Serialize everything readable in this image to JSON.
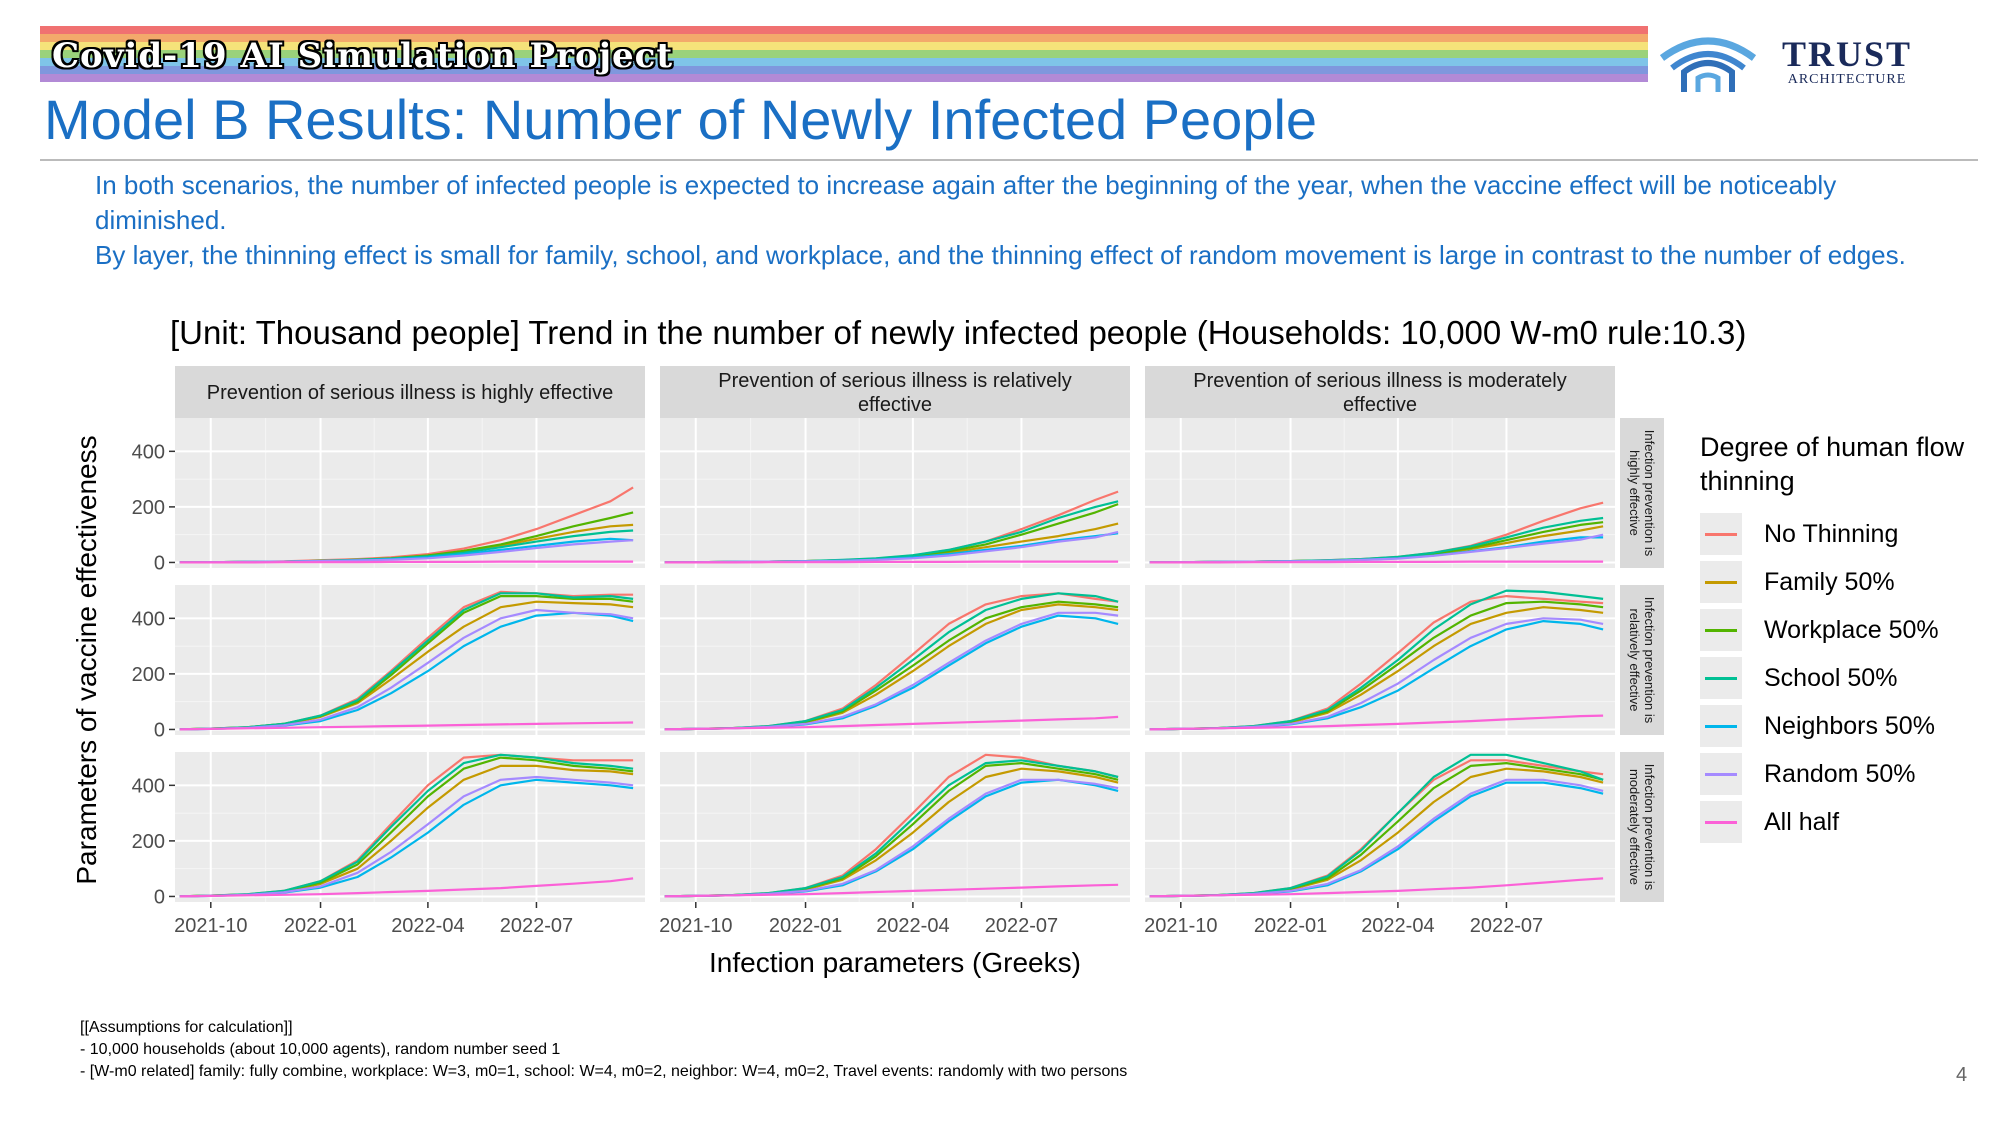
{
  "header": {
    "project_title": "Covid-19 AI Simulation Project",
    "logo_name": "TRUST",
    "logo_sub": "ARCHITECTURE",
    "banner_colors": [
      "#f07171",
      "#f3a96b",
      "#f5e27a",
      "#9ad27b",
      "#7fc4e8",
      "#7f97dd",
      "#b28ad6"
    ]
  },
  "page_title": "Model B Results: Number of Newly Infected People",
  "intro": [
    "In both scenarios, the number of infected people is expected to increase again after the beginning of the year, when the vaccine effect will be noticeably diminished.",
    "By layer, the thinning effect is small for family, school, and workplace, and the thinning effect of random movement is large in contrast to the number of edges."
  ],
  "chart_title": "[Unit: Thousand people] Trend in the number of newly infected people (Households: 10,000 W-m0 rule:10.3)",
  "assumptions": [
    "[[Assumptions for calculation]]",
    "- 10,000 households (about 10,000 agents), random number seed 1",
    "- [W-m0 related] family: fully combine, workplace: W=3, m0=1, school: W=4, m0=2, neighbor: W=4, m0=2, Travel events: randomly with two persons"
  ],
  "page_number": "4",
  "chart_data": {
    "type": "line",
    "xlabel": "Infection parameters (Greeks)",
    "ylabel": "Parameters of vaccine effectiveness",
    "x_ticks": [
      "2021-10",
      "2022-01",
      "2022-04",
      "2022-07"
    ],
    "x_range": [
      "2021-09-01",
      "2022-09-30"
    ],
    "y_ticks": [
      0,
      200,
      400
    ],
    "y_range": [
      -20,
      520
    ],
    "col_labels": [
      "Prevention of serious illness is highly effective",
      "Prevention of serious illness is relatively effective",
      "Prevention of serious illness is moderately effective"
    ],
    "row_labels": [
      "Infection prevention is highly effective",
      "Infection prevention is relatively effective",
      "Infection prevention is moderately effective"
    ],
    "legend_title": "Degree of human flow thinning",
    "series": [
      {
        "name": "No Thinning",
        "color": "#F8766D"
      },
      {
        "name": "Family 50%",
        "color": "#C49A00"
      },
      {
        "name": "Workplace 50%",
        "color": "#53B400"
      },
      {
        "name": "School 50%",
        "color": "#00C094"
      },
      {
        "name": "Neighbors 50%",
        "color": "#00B6EB"
      },
      {
        "name": "Random 50%",
        "color": "#A58AFF"
      },
      {
        "name": "All half",
        "color": "#FB61D7"
      }
    ],
    "dates": [
      "2021-09-05",
      "2021-10-01",
      "2021-11-01",
      "2021-12-01",
      "2022-01-01",
      "2022-02-01",
      "2022-03-01",
      "2022-04-01",
      "2022-05-01",
      "2022-06-01",
      "2022-07-01",
      "2022-08-01",
      "2022-09-01",
      "2022-09-20"
    ],
    "panels": [
      {
        "row": 0,
        "col": 0,
        "values": [
          [
            0,
            1,
            2,
            4,
            8,
            12,
            18,
            30,
            50,
            80,
            120,
            170,
            220,
            270
          ],
          [
            0,
            1,
            2,
            3,
            6,
            10,
            15,
            25,
            40,
            60,
            85,
            110,
            130,
            135
          ],
          [
            0,
            1,
            2,
            3,
            6,
            10,
            15,
            25,
            42,
            65,
            95,
            130,
            160,
            180
          ],
          [
            0,
            1,
            2,
            3,
            6,
            9,
            14,
            22,
            35,
            55,
            75,
            95,
            110,
            115
          ],
          [
            0,
            1,
            2,
            3,
            5,
            8,
            12,
            18,
            30,
            45,
            60,
            75,
            85,
            80
          ],
          [
            0,
            1,
            2,
            3,
            5,
            7,
            10,
            15,
            25,
            38,
            52,
            65,
            75,
            80
          ],
          [
            0,
            0,
            0,
            1,
            1,
            1,
            2,
            2,
            2,
            3,
            3,
            3,
            3,
            3
          ]
        ]
      },
      {
        "row": 0,
        "col": 1,
        "values": [
          [
            0,
            1,
            2,
            3,
            5,
            8,
            14,
            25,
            45,
            75,
            120,
            170,
            225,
            255
          ],
          [
            0,
            1,
            2,
            3,
            5,
            8,
            12,
            22,
            35,
            55,
            75,
            95,
            120,
            140
          ],
          [
            0,
            1,
            2,
            3,
            5,
            8,
            13,
            24,
            40,
            65,
            100,
            140,
            180,
            210
          ],
          [
            0,
            1,
            2,
            3,
            5,
            9,
            15,
            26,
            45,
            75,
            110,
            160,
            200,
            220
          ],
          [
            0,
            1,
            2,
            3,
            4,
            6,
            10,
            18,
            30,
            45,
            60,
            80,
            95,
            105
          ],
          [
            0,
            1,
            2,
            3,
            4,
            6,
            9,
            15,
            25,
            40,
            55,
            75,
            90,
            110
          ],
          [
            0,
            0,
            0,
            1,
            1,
            1,
            2,
            2,
            2,
            3,
            3,
            3,
            3,
            3
          ]
        ]
      },
      {
        "row": 0,
        "col": 2,
        "values": [
          [
            0,
            1,
            2,
            3,
            5,
            8,
            12,
            20,
            35,
            60,
            100,
            150,
            195,
            215
          ],
          [
            0,
            1,
            2,
            3,
            5,
            7,
            11,
            18,
            30,
            48,
            70,
            95,
            115,
            130
          ],
          [
            0,
            1,
            2,
            3,
            5,
            7,
            11,
            18,
            32,
            52,
            80,
            110,
            135,
            145
          ],
          [
            0,
            1,
            2,
            3,
            5,
            8,
            12,
            20,
            35,
            58,
            90,
            125,
            150,
            160
          ],
          [
            0,
            1,
            2,
            3,
            4,
            6,
            9,
            15,
            25,
            40,
            55,
            75,
            90,
            90
          ],
          [
            0,
            1,
            2,
            3,
            4,
            6,
            9,
            14,
            24,
            38,
            52,
            68,
            82,
            100
          ],
          [
            0,
            0,
            0,
            1,
            1,
            1,
            2,
            2,
            2,
            3,
            3,
            3,
            3,
            3
          ]
        ]
      },
      {
        "row": 1,
        "col": 0,
        "values": [
          [
            0,
            3,
            8,
            20,
            50,
            110,
            210,
            330,
            440,
            495,
            490,
            480,
            485,
            485
          ],
          [
            0,
            3,
            7,
            18,
            45,
            95,
            180,
            280,
            370,
            440,
            460,
            455,
            450,
            440
          ],
          [
            0,
            3,
            8,
            20,
            48,
            100,
            195,
            310,
            420,
            480,
            480,
            470,
            470,
            460
          ],
          [
            0,
            3,
            8,
            20,
            50,
            105,
            205,
            320,
            430,
            490,
            490,
            475,
            480,
            470
          ],
          [
            0,
            2,
            6,
            14,
            30,
            70,
            130,
            210,
            300,
            370,
            410,
            420,
            410,
            390
          ],
          [
            0,
            2,
            6,
            15,
            35,
            80,
            150,
            240,
            330,
            400,
            430,
            420,
            415,
            400
          ],
          [
            0,
            2,
            4,
            6,
            8,
            10,
            12,
            14,
            16,
            18,
            20,
            22,
            24,
            25
          ]
        ]
      },
      {
        "row": 1,
        "col": 1,
        "values": [
          [
            0,
            2,
            5,
            12,
            30,
            75,
            160,
            270,
            380,
            450,
            480,
            490,
            470,
            460
          ],
          [
            0,
            2,
            4,
            10,
            25,
            60,
            125,
            210,
            300,
            380,
            430,
            450,
            440,
            430
          ],
          [
            0,
            2,
            5,
            11,
            27,
            65,
            140,
            230,
            320,
            400,
            440,
            460,
            450,
            440
          ],
          [
            0,
            2,
            5,
            12,
            30,
            70,
            150,
            250,
            350,
            430,
            470,
            490,
            480,
            460
          ],
          [
            0,
            2,
            4,
            8,
            18,
            40,
            85,
            150,
            230,
            310,
            370,
            410,
            400,
            380
          ],
          [
            0,
            2,
            4,
            9,
            20,
            45,
            90,
            160,
            240,
            320,
            380,
            420,
            420,
            410
          ],
          [
            0,
            2,
            4,
            6,
            8,
            12,
            16,
            20,
            24,
            28,
            32,
            36,
            40,
            45
          ]
        ]
      },
      {
        "row": 1,
        "col": 2,
        "values": [
          [
            0,
            2,
            5,
            12,
            30,
            75,
            165,
            275,
            385,
            460,
            480,
            470,
            460,
            455
          ],
          [
            0,
            2,
            4,
            10,
            25,
            60,
            125,
            210,
            300,
            380,
            420,
            440,
            430,
            420
          ],
          [
            0,
            2,
            5,
            11,
            28,
            65,
            140,
            235,
            330,
            410,
            455,
            460,
            450,
            440
          ],
          [
            0,
            2,
            5,
            12,
            30,
            70,
            150,
            250,
            360,
            450,
            500,
            495,
            480,
            470
          ],
          [
            0,
            2,
            4,
            8,
            18,
            40,
            80,
            140,
            220,
            300,
            360,
            390,
            380,
            360
          ],
          [
            0,
            2,
            4,
            9,
            20,
            45,
            95,
            165,
            250,
            330,
            380,
            400,
            395,
            380
          ],
          [
            0,
            2,
            4,
            6,
            8,
            12,
            16,
            20,
            25,
            30,
            36,
            42,
            48,
            50
          ]
        ]
      },
      {
        "row": 2,
        "col": 0,
        "values": [
          [
            0,
            3,
            8,
            20,
            55,
            130,
            260,
            400,
            500,
            510,
            500,
            490,
            490,
            490
          ],
          [
            0,
            3,
            7,
            17,
            45,
            100,
            200,
            320,
            420,
            470,
            470,
            455,
            450,
            440
          ],
          [
            0,
            3,
            7,
            18,
            50,
            115,
            230,
            360,
            460,
            500,
            490,
            470,
            460,
            450
          ],
          [
            0,
            3,
            8,
            20,
            55,
            125,
            250,
            380,
            480,
            510,
            500,
            480,
            470,
            460
          ],
          [
            0,
            2,
            6,
            14,
            32,
            70,
            140,
            230,
            330,
            400,
            420,
            410,
            400,
            390
          ],
          [
            0,
            2,
            6,
            15,
            36,
            85,
            160,
            260,
            360,
            420,
            430,
            420,
            410,
            400
          ],
          [
            0,
            2,
            4,
            6,
            8,
            12,
            16,
            20,
            25,
            30,
            38,
            46,
            55,
            65
          ]
        ]
      },
      {
        "row": 2,
        "col": 1,
        "values": [
          [
            0,
            2,
            5,
            12,
            30,
            75,
            170,
            300,
            430,
            510,
            500,
            470,
            450,
            430
          ],
          [
            0,
            2,
            4,
            10,
            25,
            60,
            130,
            230,
            340,
            430,
            460,
            450,
            430,
            410
          ],
          [
            0,
            2,
            5,
            11,
            28,
            65,
            145,
            260,
            380,
            470,
            480,
            460,
            440,
            420
          ],
          [
            0,
            2,
            5,
            12,
            30,
            70,
            155,
            280,
            400,
            480,
            490,
            470,
            450,
            430
          ],
          [
            0,
            2,
            4,
            8,
            18,
            40,
            90,
            170,
            270,
            360,
            410,
            420,
            400,
            380
          ],
          [
            0,
            2,
            4,
            9,
            20,
            45,
            95,
            180,
            280,
            370,
            420,
            420,
            405,
            390
          ],
          [
            0,
            2,
            4,
            6,
            8,
            12,
            16,
            20,
            24,
            28,
            32,
            36,
            40,
            42
          ]
        ]
      },
      {
        "row": 2,
        "col": 2,
        "values": [
          [
            0,
            2,
            5,
            12,
            30,
            75,
            170,
            300,
            420,
            490,
            490,
            470,
            450,
            440
          ],
          [
            0,
            2,
            4,
            10,
            25,
            60,
            130,
            230,
            340,
            430,
            460,
            450,
            430,
            410
          ],
          [
            0,
            2,
            5,
            11,
            28,
            65,
            150,
            270,
            390,
            470,
            480,
            460,
            440,
            420
          ],
          [
            0,
            2,
            5,
            12,
            30,
            72,
            165,
            300,
            430,
            510,
            510,
            480,
            450,
            420
          ],
          [
            0,
            2,
            4,
            8,
            18,
            40,
            90,
            170,
            270,
            360,
            410,
            410,
            390,
            370
          ],
          [
            0,
            2,
            4,
            9,
            20,
            45,
            95,
            180,
            280,
            370,
            420,
            420,
            400,
            380
          ],
          [
            0,
            2,
            4,
            6,
            8,
            12,
            16,
            20,
            26,
            32,
            40,
            50,
            60,
            65
          ]
        ]
      }
    ]
  }
}
